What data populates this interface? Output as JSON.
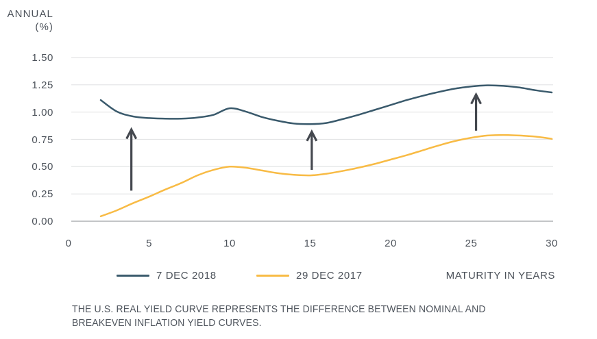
{
  "chart_data": {
    "type": "line",
    "xlabel": "MATURITY IN YEARS",
    "ylabel_lines": [
      "ANNUAL",
      "(%)"
    ],
    "x_ticks": [
      0,
      5,
      10,
      15,
      20,
      25,
      30
    ],
    "y_ticks": [
      1.5,
      1.25,
      1.0,
      0.75,
      0.5,
      0.25,
      0.0
    ],
    "xlim": [
      0,
      30
    ],
    "ylim": [
      0.0,
      1.5
    ],
    "grid": true,
    "legend_position": "bottom",
    "x": [
      2,
      3,
      4,
      5,
      6,
      7,
      8,
      9,
      10,
      11,
      12,
      13,
      14,
      15,
      16,
      17,
      18,
      19,
      20,
      21,
      22,
      23,
      24,
      25,
      26,
      27,
      28,
      29,
      30
    ],
    "series": [
      {
        "name": "7 DEC 2018",
        "color": "#3A5A6C",
        "values": [
          1.11,
          1.005,
          0.96,
          0.945,
          0.94,
          0.94,
          0.95,
          0.975,
          1.035,
          1.005,
          0.955,
          0.92,
          0.895,
          0.89,
          0.9,
          0.935,
          0.975,
          1.02,
          1.065,
          1.11,
          1.15,
          1.185,
          1.215,
          1.235,
          1.245,
          1.24,
          1.225,
          1.2,
          1.18
        ]
      },
      {
        "name": "29 DEC 2017",
        "color": "#F8BB45",
        "values": [
          0.045,
          0.1,
          0.165,
          0.225,
          0.29,
          0.35,
          0.42,
          0.47,
          0.5,
          0.49,
          0.465,
          0.44,
          0.425,
          0.42,
          0.435,
          0.46,
          0.49,
          0.525,
          0.565,
          0.605,
          0.65,
          0.695,
          0.735,
          0.765,
          0.785,
          0.79,
          0.785,
          0.775,
          0.755
        ]
      }
    ],
    "annotations": {
      "arrows": [
        {
          "x": 3.9,
          "y_from": 0.28,
          "y_to": 0.85
        },
        {
          "x": 15.1,
          "y_from": 0.47,
          "y_to": 0.83
        },
        {
          "x": 25.3,
          "y_from": 0.83,
          "y_to": 1.17
        }
      ]
    }
  },
  "caption": {
    "line1": "THE U.S. REAL YIELD CURVE REPRESENTS THE DIFFERENCE BETWEEN NOMINAL AND",
    "line2": "BREAKEVEN INFLATION YIELD CURVES."
  },
  "colors": {
    "grid": "#E3E4E5",
    "axis": "#C3C5C7",
    "text": "#4C525A",
    "arrow": "#44484F",
    "line_2018": "#3A5A6C",
    "line_2017": "#F8BB45"
  }
}
